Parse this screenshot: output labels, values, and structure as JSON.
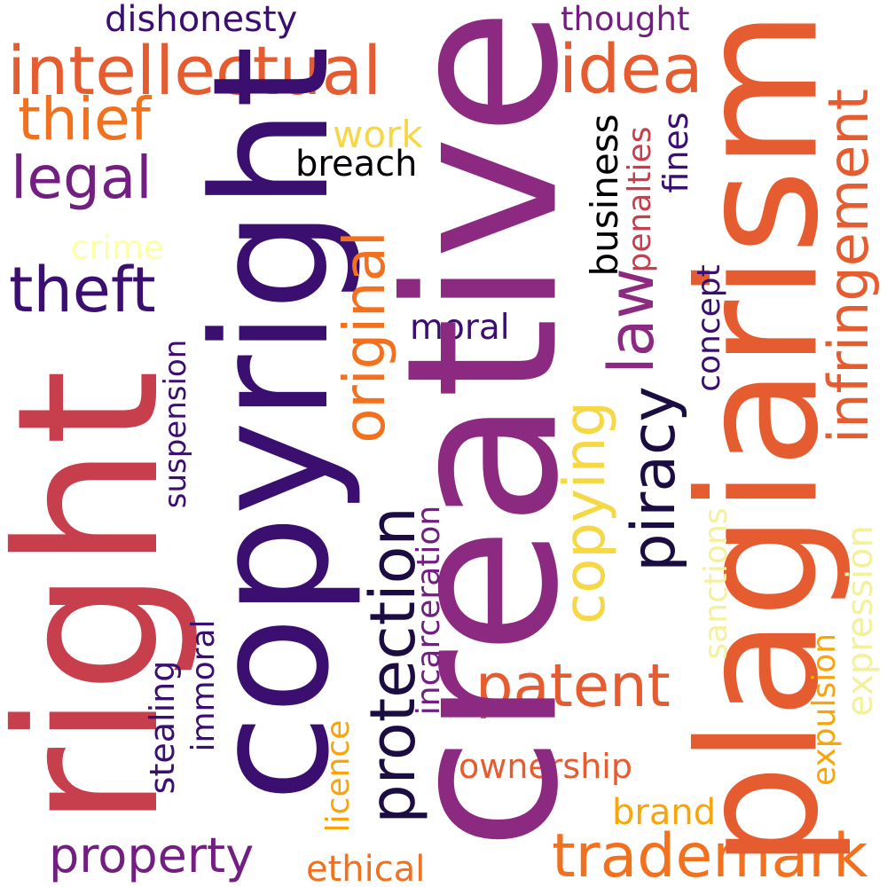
{
  "words": {
    "creative": "creative",
    "right": "right",
    "copyright": "copyright",
    "plagiarism": "plagiarism",
    "infringement": "infringement",
    "protection": "protection",
    "intellectual": "intellectual",
    "trademark": "trademark",
    "patent": "patent",
    "property": "property",
    "theft": "theft",
    "legal": "legal",
    "thief": "thief",
    "idea": "idea",
    "piracy": "piracy",
    "law": "law",
    "original": "original",
    "copying": "copying",
    "dishonesty": "dishonesty",
    "thought": "thought",
    "work": "work",
    "breach": "breach",
    "crime": "crime",
    "business": "business",
    "penalties": "penalties",
    "fines": "fines",
    "concept": "concept",
    "moral": "moral",
    "suspension": "suspension",
    "incarceration": "incarceration",
    "sanctions": "sanctions",
    "expression": "expression",
    "expulsion": "expulsion",
    "stealing": "stealing",
    "immoral": "immoral",
    "licence": "licence",
    "ownership": "ownership",
    "brand": "brand",
    "ethical": "ethical"
  },
  "colors": {
    "deep_purple": "#3b0f70",
    "dark_navy": "#1b0c41",
    "black": "#000004",
    "magenta": "#8c2981",
    "plum": "#721f81",
    "crimson": "#c73e4c",
    "red_orange": "#e55c30",
    "orange": "#f1711f",
    "amber": "#f9a40b",
    "gold": "#f6d746",
    "pale_yellow": "#fcffa4",
    "light_yellow": "#f4f19e"
  }
}
